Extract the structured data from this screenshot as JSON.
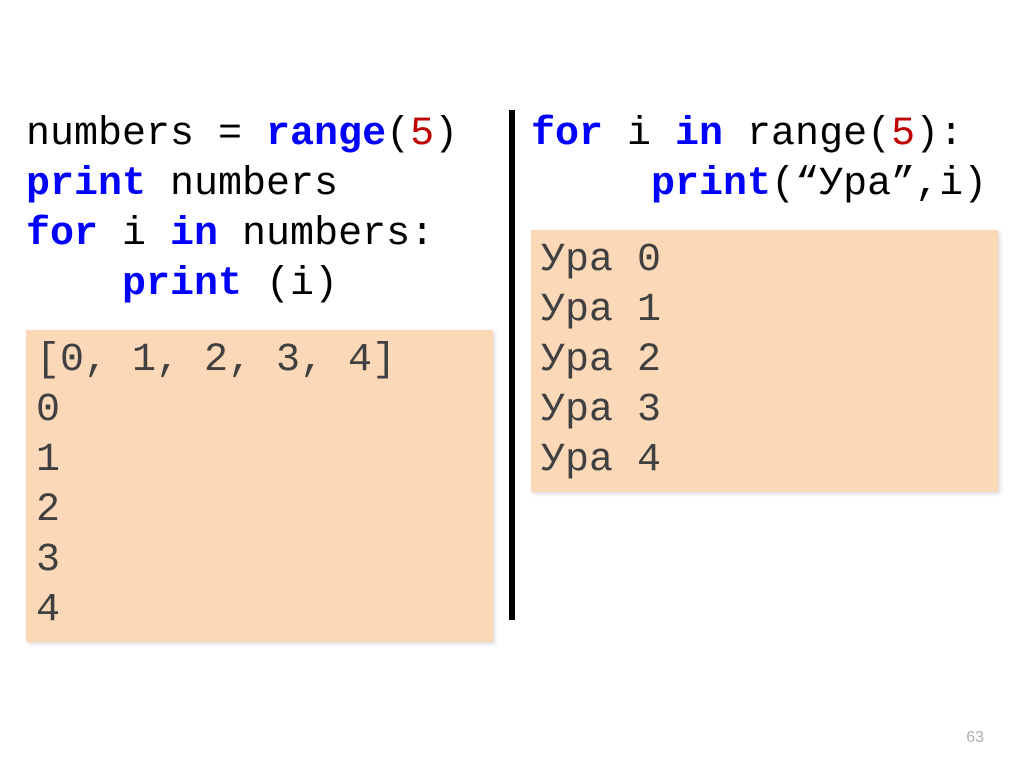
{
  "left": {
    "code": {
      "line1": {
        "t1": "numbers = ",
        "kw": "range",
        "t2": "(",
        "n": "5",
        "t3": ")"
      },
      "line2": {
        "kw": "print",
        "t1": " numbers"
      },
      "line3": {
        "kw1": "for",
        "t1": " i ",
        "kw2": "in",
        "t2": " numbers:"
      },
      "line4": {
        "indent": "    ",
        "kw": "print",
        "t1": " (i)"
      }
    },
    "output": "[0, 1, 2, 3, 4]\n0\n1\n2\n3\n4"
  },
  "right": {
    "code": {
      "line1": {
        "kw1": "for",
        "t1": " i ",
        "kw2": "in",
        "t2": " range(",
        "n": "5",
        "t3": "):"
      },
      "line2": {
        "indent": "     ",
        "kw": "print",
        "t1": "(“Ура”,i)"
      }
    },
    "output": "Ура 0\nУра 1\nУра 2\nУра 3\nУра 4"
  },
  "pagenum": "63",
  "colors": {
    "keyword": "#0000ff",
    "number": "#c00000",
    "output_bg": "#fad8b8",
    "text": "#000000",
    "output_text": "#404040",
    "background": "#ffffff",
    "divider": "#000000"
  },
  "font": {
    "family": "Courier New",
    "size_pt": 30
  }
}
